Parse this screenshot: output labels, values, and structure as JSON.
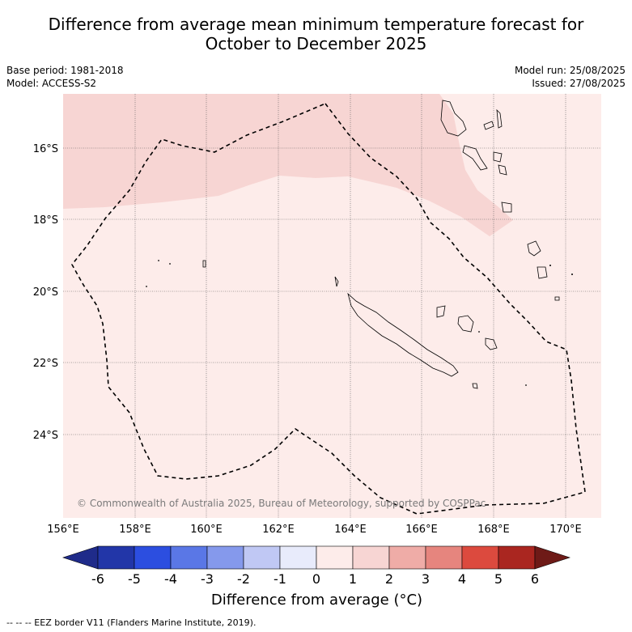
{
  "title_line1": "Difference from average mean minimum temperature forecast for",
  "title_line2": "October to December 2025",
  "meta_left": {
    "base_period": "Base period: 1981-2018",
    "model": "Model: ACCESS-S2"
  },
  "meta_right": {
    "model_run": "Model run: 25/08/2025",
    "issued": "Issued: 27/08/2025"
  },
  "lat_labels": [
    "16°S",
    "18°S",
    "20°S",
    "22°S",
    "24°S"
  ],
  "lon_labels": [
    "156°E",
    "158°E",
    "160°E",
    "162°E",
    "164°E",
    "166°E",
    "168°E",
    "170°E"
  ],
  "credit": "© Commonwealth of Australia 2025, Bureau of Meteorology, supported by COSPPac",
  "colorbar": {
    "ticks": [
      "-6",
      "-5",
      "-4",
      "-3",
      "-2",
      "-1",
      "0",
      "1",
      "2",
      "3",
      "4",
      "5",
      "6"
    ],
    "colors": [
      "#1f2b8a",
      "#2236a8",
      "#2c4ee0",
      "#5a77e6",
      "#8599ec",
      "#c0c8f4",
      "#e8ebfb",
      "#fdecea",
      "#f7d5d3",
      "#efaca7",
      "#e6857e",
      "#dc4a3e",
      "#aa2620",
      "#6e1a17"
    ],
    "title": "Difference from average (°C)"
  },
  "map_colors": {
    "band_0_1": "#fdecea",
    "band_1_2": "#f7d5d3"
  },
  "footer": "-- -- -- EEZ border V11 (Flanders Marine Institute, 2019)."
}
